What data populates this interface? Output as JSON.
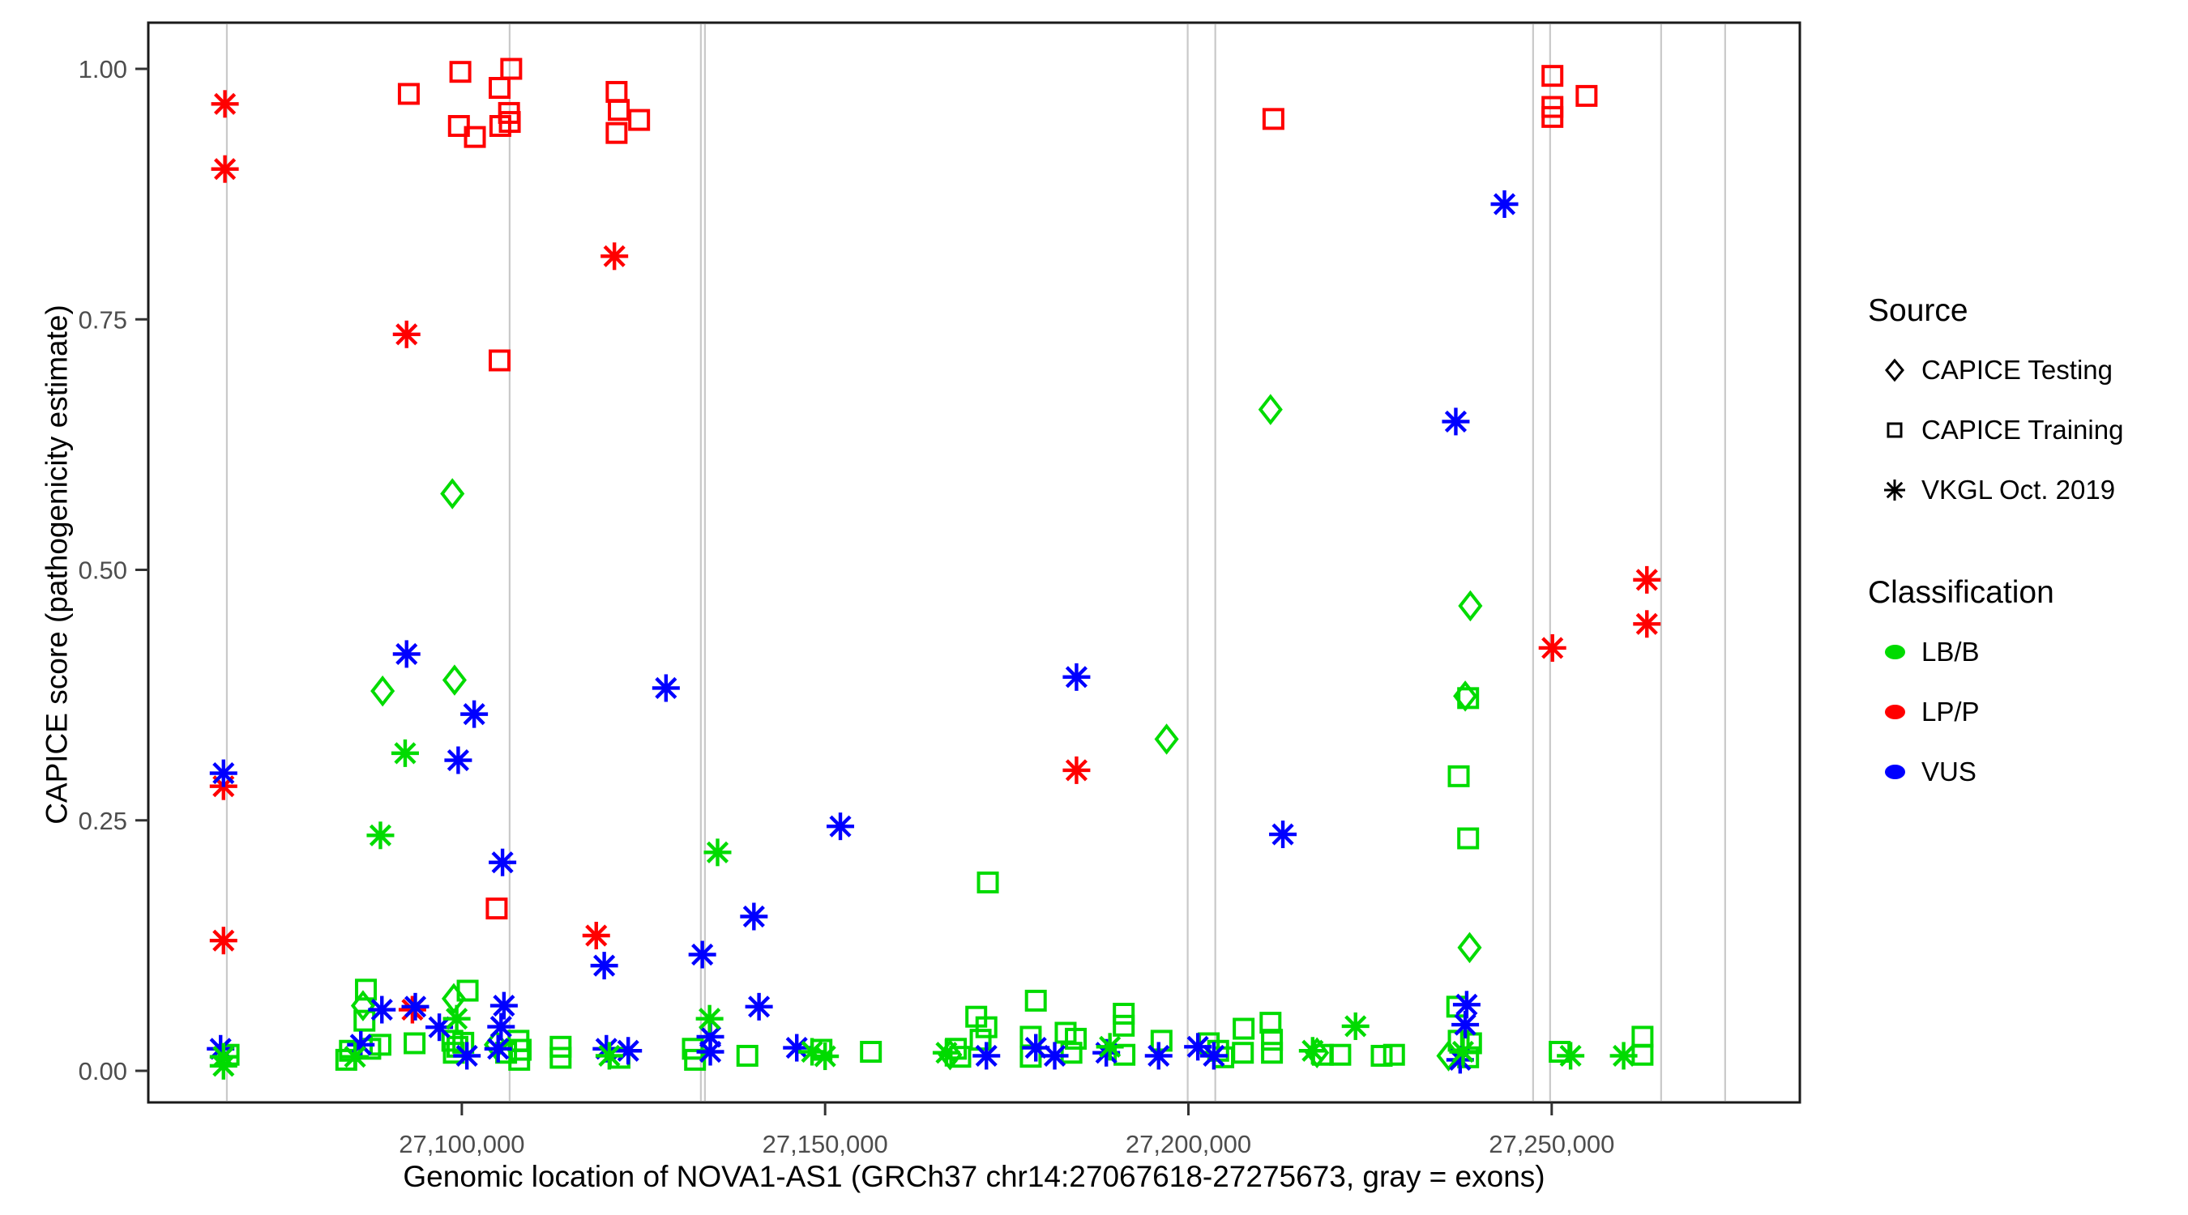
{
  "figure": {
    "x_axis_title": "Genomic location of NOVA1-AS1 (GRCh37 chr14:27067618-27275673, gray = exons)",
    "y_axis_title": "CAPICE score (pathogenicity estimate)"
  },
  "legend": {
    "source_title": "Source",
    "source_items": [
      {
        "label": "CAPICE Testing",
        "marker": "diamond"
      },
      {
        "label": "CAPICE Training",
        "marker": "square"
      },
      {
        "label": "VKGL Oct. 2019",
        "marker": "asterisk"
      }
    ],
    "classification_title": "Classification",
    "classification_items": [
      {
        "label": "LB/B",
        "color": "#00DB00"
      },
      {
        "label": "LP/P",
        "color": "#FF0000"
      },
      {
        "label": "VUS",
        "color": "#0000FF"
      }
    ]
  },
  "chart_data": {
    "type": "scatter",
    "title": "",
    "xlabel": "Genomic location of NOVA1-AS1 (GRCh37 chr14:27067618-27275673, gray = exons)",
    "ylabel": "CAPICE score (pathogenicity estimate)",
    "xlim": [
      27056850,
      27284150
    ],
    "ylim": [
      0,
      1
    ],
    "grid": "vertical-exon-lines-only",
    "legend_position": "right",
    "x_ticks": [
      27100000,
      27150000,
      27200000,
      27250000
    ],
    "x_tick_labels": [
      "27,100,000",
      "27,150,000",
      "27,200,000",
      "27,250,000"
    ],
    "y_ticks": [
      0,
      0.25,
      0.5,
      0.75,
      1
    ],
    "y_tick_labels": [
      "0.00",
      "0.25",
      "0.50",
      "0.75",
      "1.00"
    ],
    "exon_line_positions": [
      27067660,
      27106580,
      27132900,
      27133460,
      27199900,
      27203700,
      27247440,
      27249780,
      27265060,
      27273870
    ],
    "exon_line_color": "#c9c9c9",
    "class_colors": {
      "LB/B": "#00DB00",
      "LP/P": "#FF0000",
      "VUS": "#0000FF"
    },
    "point_format": [
      "genomic_position",
      "capice_score",
      "classification"
    ],
    "series": [
      {
        "name": "CAPICE Testing",
        "marker": "diamond",
        "points": [
          [
            27098700,
            0.576,
            "LB/B"
          ],
          [
            27099000,
            0.39,
            "LB/B"
          ],
          [
            27089100,
            0.379,
            "LB/B"
          ],
          [
            27086400,
            0.065,
            "LB/B"
          ],
          [
            27098900,
            0.072,
            "LB/B"
          ],
          [
            27104700,
            0.026,
            "LB/B"
          ],
          [
            27211300,
            0.66,
            "LB/B"
          ],
          [
            27197000,
            0.331,
            "LB/B"
          ],
          [
            27238800,
            0.464,
            "LB/B"
          ],
          [
            27238100,
            0.374,
            "LB/B"
          ],
          [
            27238700,
            0.123,
            "LB/B"
          ],
          [
            27235800,
            0.015,
            "LB/B"
          ],
          [
            27167200,
            0.016,
            "LB/B"
          ],
          [
            27217700,
            0.018,
            "LB/B"
          ]
        ]
      },
      {
        "name": "CAPICE Training",
        "marker": "square",
        "points": [
          [
            27092700,
            0.975,
            "LP/P"
          ],
          [
            27099800,
            0.997,
            "LP/P"
          ],
          [
            27106800,
            1.0,
            "LP/P"
          ],
          [
            27105200,
            0.981,
            "LP/P"
          ],
          [
            27106500,
            0.956,
            "LP/P"
          ],
          [
            27106600,
            0.947,
            "LP/P"
          ],
          [
            27099600,
            0.943,
            "LP/P"
          ],
          [
            27101800,
            0.932,
            "LP/P"
          ],
          [
            27105300,
            0.943,
            "LP/P"
          ],
          [
            27121300,
            0.977,
            "LP/P"
          ],
          [
            27121600,
            0.959,
            "LP/P"
          ],
          [
            27124400,
            0.949,
            "LP/P"
          ],
          [
            27121300,
            0.936,
            "LP/P"
          ],
          [
            27105200,
            0.709,
            "LP/P"
          ],
          [
            27104800,
            0.162,
            "LP/P"
          ],
          [
            27211700,
            0.95,
            "LP/P"
          ],
          [
            27250100,
            0.993,
            "LP/P"
          ],
          [
            27250100,
            0.962,
            "LP/P"
          ],
          [
            27250100,
            0.952,
            "LP/P"
          ],
          [
            27254800,
            0.973,
            "LP/P"
          ],
          [
            27086800,
            0.081,
            "LB/B"
          ],
          [
            27086600,
            0.05,
            "LB/B"
          ],
          [
            27084600,
            0.02,
            "LB/B"
          ],
          [
            27087400,
            0.022,
            "LB/B"
          ],
          [
            27088800,
            0.026,
            "LB/B"
          ],
          [
            27084100,
            0.011,
            "LB/B"
          ],
          [
            27093500,
            0.0275,
            "LB/B"
          ],
          [
            27100800,
            0.08,
            "LB/B"
          ],
          [
            27098700,
            0.03,
            "LB/B"
          ],
          [
            27099400,
            0.024,
            "LB/B"
          ],
          [
            27100200,
            0.028,
            "LB/B"
          ],
          [
            27098900,
            0.018,
            "LB/B"
          ],
          [
            27106100,
            0.018,
            "LB/B"
          ],
          [
            27107800,
            0.03,
            "LB/B"
          ],
          [
            27108100,
            0.021,
            "LB/B"
          ],
          [
            27107900,
            0.011,
            "LB/B"
          ],
          [
            27113600,
            0.024,
            "LB/B"
          ],
          [
            27113600,
            0.013,
            "LB/B"
          ],
          [
            27121700,
            0.013,
            "LB/B"
          ],
          [
            27131800,
            0.022,
            "LB/B"
          ],
          [
            27132100,
            0.011,
            "LB/B"
          ],
          [
            27139300,
            0.015,
            "LB/B"
          ],
          [
            27149500,
            0.021,
            "LB/B"
          ],
          [
            27156300,
            0.019,
            "LB/B"
          ],
          [
            27168000,
            0.022,
            "LB/B"
          ],
          [
            27168600,
            0.014,
            "LB/B"
          ],
          [
            27170800,
            0.054,
            "LB/B"
          ],
          [
            27172200,
            0.0435,
            "LB/B"
          ],
          [
            27171400,
            0.031,
            "LB/B"
          ],
          [
            27172400,
            0.188,
            "LB/B"
          ],
          [
            27179000,
            0.07,
            "LB/B"
          ],
          [
            27178300,
            0.034,
            "LB/B"
          ],
          [
            27178300,
            0.014,
            "LB/B"
          ],
          [
            27183100,
            0.038,
            "LB/B"
          ],
          [
            27184500,
            0.032,
            "LB/B"
          ],
          [
            27183900,
            0.018,
            "LB/B"
          ],
          [
            27191100,
            0.057,
            "LB/B"
          ],
          [
            27191100,
            0.045,
            "LB/B"
          ],
          [
            27191200,
            0.016,
            "LB/B"
          ],
          [
            27196300,
            0.03,
            "LB/B"
          ],
          [
            27202800,
            0.0275,
            "LB/B"
          ],
          [
            27204100,
            0.02,
            "LB/B"
          ],
          [
            27204800,
            0.0135,
            "LB/B"
          ],
          [
            27207600,
            0.042,
            "LB/B"
          ],
          [
            27207500,
            0.018,
            "LB/B"
          ],
          [
            27211300,
            0.048,
            "LB/B"
          ],
          [
            27211500,
            0.031,
            "LB/B"
          ],
          [
            27211500,
            0.018,
            "LB/B"
          ],
          [
            27218500,
            0.016,
            "LB/B"
          ],
          [
            27220900,
            0.016,
            "LB/B"
          ],
          [
            27226600,
            0.015,
            "LB/B"
          ],
          [
            27228300,
            0.016,
            "LB/B"
          ],
          [
            27237200,
            0.294,
            "LB/B"
          ],
          [
            27238500,
            0.232,
            "LB/B"
          ],
          [
            27238500,
            0.372,
            "LB/B"
          ],
          [
            27237000,
            0.064,
            "LB/B"
          ],
          [
            27237200,
            0.03,
            "LB/B"
          ],
          [
            27238900,
            0.0275,
            "LB/B"
          ],
          [
            27238500,
            0.0135,
            "LB/B"
          ],
          [
            27251100,
            0.019,
            "LB/B"
          ],
          [
            27262500,
            0.034,
            "LB/B"
          ],
          [
            27262500,
            0.016,
            "LB/B"
          ],
          [
            27067900,
            0.016,
            "LB/B"
          ]
        ]
      },
      {
        "name": "VKGL Oct. 2019",
        "marker": "asterisk",
        "points": [
          [
            27067400,
            0.965,
            "LP/P"
          ],
          [
            27067400,
            0.9,
            "LP/P"
          ],
          [
            27067200,
            0.284,
            "LP/P"
          ],
          [
            27067200,
            0.13,
            "LP/P"
          ],
          [
            27092400,
            0.735,
            "LP/P"
          ],
          [
            27121000,
            0.813,
            "LP/P"
          ],
          [
            27118500,
            0.135,
            "LP/P"
          ],
          [
            27093200,
            0.061,
            "LP/P"
          ],
          [
            27184600,
            0.3,
            "LP/P"
          ],
          [
            27250100,
            0.422,
            "LP/P"
          ],
          [
            27263100,
            0.49,
            "LP/P"
          ],
          [
            27263100,
            0.446,
            "LP/P"
          ],
          [
            27067200,
            0.297,
            "VUS"
          ],
          [
            27066800,
            0.022,
            "VUS"
          ],
          [
            27092400,
            0.416,
            "VUS"
          ],
          [
            27101700,
            0.356,
            "VUS"
          ],
          [
            27099500,
            0.31,
            "VUS"
          ],
          [
            27105600,
            0.208,
            "VUS"
          ],
          [
            27128100,
            0.382,
            "VUS"
          ],
          [
            27089000,
            0.061,
            "VUS"
          ],
          [
            27086100,
            0.026,
            "VUS"
          ],
          [
            27093600,
            0.064,
            "VUS"
          ],
          [
            27096900,
            0.0435,
            "VUS"
          ],
          [
            27100700,
            0.015,
            "VUS"
          ],
          [
            27105800,
            0.065,
            "VUS"
          ],
          [
            27105400,
            0.044,
            "VUS"
          ],
          [
            27105000,
            0.022,
            "VUS"
          ],
          [
            27119600,
            0.105,
            "VUS"
          ],
          [
            27119900,
            0.022,
            "VUS"
          ],
          [
            27122900,
            0.02,
            "VUS"
          ],
          [
            27133100,
            0.116,
            "VUS"
          ],
          [
            27134200,
            0.034,
            "VUS"
          ],
          [
            27134200,
            0.019,
            "VUS"
          ],
          [
            27140900,
            0.064,
            "VUS"
          ],
          [
            27140200,
            0.154,
            "VUS"
          ],
          [
            27146100,
            0.023,
            "VUS"
          ],
          [
            27152100,
            0.244,
            "VUS"
          ],
          [
            27184600,
            0.393,
            "VUS"
          ],
          [
            27213000,
            0.236,
            "VUS"
          ],
          [
            27236800,
            0.648,
            "VUS"
          ],
          [
            27243500,
            0.865,
            "VUS"
          ],
          [
            27172200,
            0.015,
            "VUS"
          ],
          [
            27179000,
            0.023,
            "VUS"
          ],
          [
            27181600,
            0.015,
            "VUS"
          ],
          [
            27188700,
            0.018,
            "VUS"
          ],
          [
            27195900,
            0.015,
            "VUS"
          ],
          [
            27201300,
            0.024,
            "VUS"
          ],
          [
            27203500,
            0.015,
            "VUS"
          ],
          [
            27238300,
            0.066,
            "VUS"
          ],
          [
            27238100,
            0.046,
            "VUS"
          ],
          [
            27237400,
            0.011,
            "VUS"
          ],
          [
            27067200,
            0.014,
            "LB/B"
          ],
          [
            27085300,
            0.014,
            "LB/B"
          ],
          [
            27092200,
            0.317,
            "LB/B"
          ],
          [
            27088800,
            0.235,
            "LB/B"
          ],
          [
            27135200,
            0.218,
            "LB/B"
          ],
          [
            27134100,
            0.052,
            "LB/B"
          ],
          [
            27099300,
            0.052,
            "LB/B"
          ],
          [
            27120300,
            0.015,
            "LB/B"
          ],
          [
            27148200,
            0.019,
            "LB/B"
          ],
          [
            27150000,
            0.0145,
            "LB/B"
          ],
          [
            27166700,
            0.018,
            "LB/B"
          ],
          [
            27189200,
            0.024,
            "LB/B"
          ],
          [
            27217100,
            0.02,
            "LB/B"
          ],
          [
            27223000,
            0.0445,
            "LB/B"
          ],
          [
            27237800,
            0.019,
            "LB/B"
          ],
          [
            27252600,
            0.015,
            "LB/B"
          ],
          [
            27259900,
            0.015,
            "LB/B"
          ],
          [
            27067200,
            0.005,
            "LB/B"
          ]
        ]
      }
    ]
  }
}
